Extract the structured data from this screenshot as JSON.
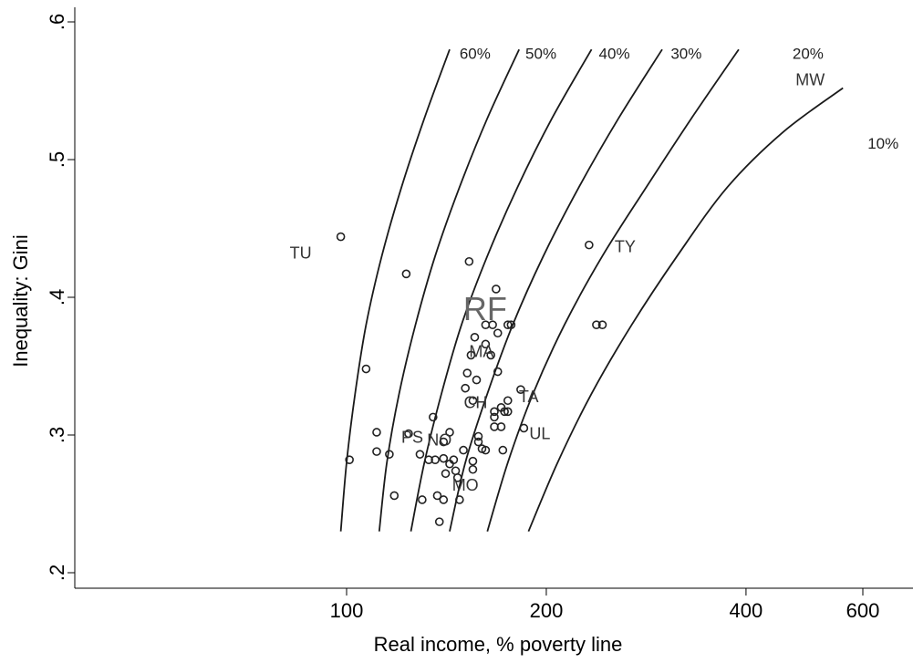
{
  "chart_data": {
    "type": "scatter",
    "xlabel": "Real income, % poverty line",
    "ylabel": "Inequality: Gini",
    "x_scale": "log",
    "xlim": [
      60,
      800
    ],
    "ylim": [
      0.19,
      0.61
    ],
    "x_ticks": [
      {
        "value": 100,
        "label": "100"
      },
      {
        "value": 200,
        "label": "200"
      },
      {
        "value": 400,
        "label": "400"
      },
      {
        "value": 600,
        "label": "600"
      }
    ],
    "y_ticks": [
      {
        "value": 0.2,
        "label": ".2"
      },
      {
        "value": 0.3,
        "label": ".3"
      },
      {
        "value": 0.4,
        "label": ".4"
      },
      {
        "value": 0.5,
        "label": ".5"
      },
      {
        "value": 0.6,
        "label": ".6"
      }
    ],
    "iso_curves": [
      {
        "label": "60%",
        "points": [
          [
            98,
            0.23
          ],
          [
            100,
            0.28
          ],
          [
            103,
            0.33
          ],
          [
            107,
            0.38
          ],
          [
            113,
            0.43
          ],
          [
            121,
            0.48
          ],
          [
            131,
            0.53
          ],
          [
            143,
            0.58
          ]
        ]
      },
      {
        "label": "50%",
        "points": [
          [
            112,
            0.23
          ],
          [
            115,
            0.28
          ],
          [
            120,
            0.33
          ],
          [
            127,
            0.38
          ],
          [
            136,
            0.43
          ],
          [
            148,
            0.48
          ],
          [
            163,
            0.53
          ],
          [
            182,
            0.58
          ]
        ]
      },
      {
        "label": "40%",
        "points": [
          [
            125,
            0.23
          ],
          [
            131,
            0.28
          ],
          [
            139,
            0.33
          ],
          [
            149,
            0.38
          ],
          [
            163,
            0.43
          ],
          [
            181,
            0.48
          ],
          [
            204,
            0.53
          ],
          [
            234,
            0.58
          ]
        ]
      },
      {
        "label": "30%",
        "points": [
          [
            143,
            0.23
          ],
          [
            151,
            0.28
          ],
          [
            163,
            0.33
          ],
          [
            178,
            0.38
          ],
          [
            198,
            0.43
          ],
          [
            224,
            0.48
          ],
          [
            257,
            0.53
          ],
          [
            299,
            0.58
          ]
        ]
      },
      {
        "label": "20%",
        "points": [
          [
            163,
            0.23
          ],
          [
            175,
            0.28
          ],
          [
            191,
            0.33
          ],
          [
            213,
            0.38
          ],
          [
            243,
            0.43
          ],
          [
            283,
            0.48
          ],
          [
            331,
            0.53
          ],
          [
            390,
            0.58
          ]
        ]
      },
      {
        "label": "10%",
        "points": [
          [
            188,
            0.23
          ],
          [
            208,
            0.28
          ],
          [
            234,
            0.33
          ],
          [
            269,
            0.38
          ],
          [
            315,
            0.43
          ],
          [
            375,
            0.48
          ],
          [
            455,
            0.52
          ],
          [
            560,
            0.552
          ]
        ]
      }
    ],
    "curve_labels": [
      {
        "text": "60%",
        "x": 148,
        "y": 0.577
      },
      {
        "text": "50%",
        "x": 186,
        "y": 0.577
      },
      {
        "text": "40%",
        "x": 240,
        "y": 0.577
      },
      {
        "text": "30%",
        "x": 308,
        "y": 0.577
      },
      {
        "text": "20%",
        "x": 470,
        "y": 0.577
      },
      {
        "text": "10%",
        "x": 610,
        "y": 0.512
      }
    ],
    "points": [
      {
        "x": 98,
        "y": 0.444,
        "label": "TU"
      },
      {
        "x": 101,
        "y": 0.282
      },
      {
        "x": 107,
        "y": 0.348
      },
      {
        "x": 111,
        "y": 0.302
      },
      {
        "x": 111,
        "y": 0.288
      },
      {
        "x": 116,
        "y": 0.286
      },
      {
        "x": 118,
        "y": 0.256
      },
      {
        "x": 123,
        "y": 0.417
      },
      {
        "x": 124,
        "y": 0.301,
        "label": "PS"
      },
      {
        "x": 129,
        "y": 0.286
      },
      {
        "x": 130,
        "y": 0.253
      },
      {
        "x": 133,
        "y": 0.282
      },
      {
        "x": 135,
        "y": 0.313
      },
      {
        "x": 136,
        "y": 0.282
      },
      {
        "x": 137,
        "y": 0.256
      },
      {
        "x": 138,
        "y": 0.237
      },
      {
        "x": 140,
        "y": 0.295,
        "label": "NO"
      },
      {
        "x": 140,
        "y": 0.253
      },
      {
        "x": 140,
        "y": 0.283
      },
      {
        "x": 141,
        "y": 0.272
      },
      {
        "x": 143,
        "y": 0.302
      },
      {
        "x": 143,
        "y": 0.279
      },
      {
        "x": 145,
        "y": 0.282
      },
      {
        "x": 146,
        "y": 0.274
      },
      {
        "x": 147,
        "y": 0.269,
        "label": "MO"
      },
      {
        "x": 148,
        "y": 0.253
      },
      {
        "x": 150,
        "y": 0.289
      },
      {
        "x": 151,
        "y": 0.334
      },
      {
        "x": 152,
        "y": 0.345
      },
      {
        "x": 153,
        "y": 0.426
      },
      {
        "x": 154,
        "y": 0.358
      },
      {
        "x": 155,
        "y": 0.281
      },
      {
        "x": 155,
        "y": 0.275
      },
      {
        "x": 155,
        "y": 0.325,
        "label": "CH"
      },
      {
        "x": 156,
        "y": 0.371
      },
      {
        "x": 157,
        "y": 0.34
      },
      {
        "x": 158,
        "y": 0.299
      },
      {
        "x": 158,
        "y": 0.295
      },
      {
        "x": 160,
        "y": 0.29
      },
      {
        "x": 162,
        "y": 0.289
      },
      {
        "x": 162,
        "y": 0.38
      },
      {
        "x": 162,
        "y": 0.366,
        "label": "MA"
      },
      {
        "x": 165,
        "y": 0.358
      },
      {
        "x": 166,
        "y": 0.38
      },
      {
        "x": 167,
        "y": 0.313
      },
      {
        "x": 167,
        "y": 0.306
      },
      {
        "x": 167,
        "y": 0.317
      },
      {
        "x": 168,
        "y": 0.406,
        "label": "RF"
      },
      {
        "x": 169,
        "y": 0.374
      },
      {
        "x": 169,
        "y": 0.346
      },
      {
        "x": 171,
        "y": 0.306
      },
      {
        "x": 171,
        "y": 0.32
      },
      {
        "x": 172,
        "y": 0.289
      },
      {
        "x": 173,
        "y": 0.317
      },
      {
        "x": 175,
        "y": 0.317
      },
      {
        "x": 175,
        "y": 0.325
      },
      {
        "x": 175,
        "y": 0.38
      },
      {
        "x": 177,
        "y": 0.38
      },
      {
        "x": 183,
        "y": 0.333,
        "label": "TA"
      },
      {
        "x": 185,
        "y": 0.305,
        "label": "UL"
      },
      {
        "x": 232,
        "y": 0.438,
        "label": "TY"
      },
      {
        "x": 238,
        "y": 0.38
      },
      {
        "x": 243,
        "y": 0.38
      }
    ],
    "annotations": [
      {
        "text": "MW",
        "x": 475,
        "y": 0.558
      }
    ]
  }
}
